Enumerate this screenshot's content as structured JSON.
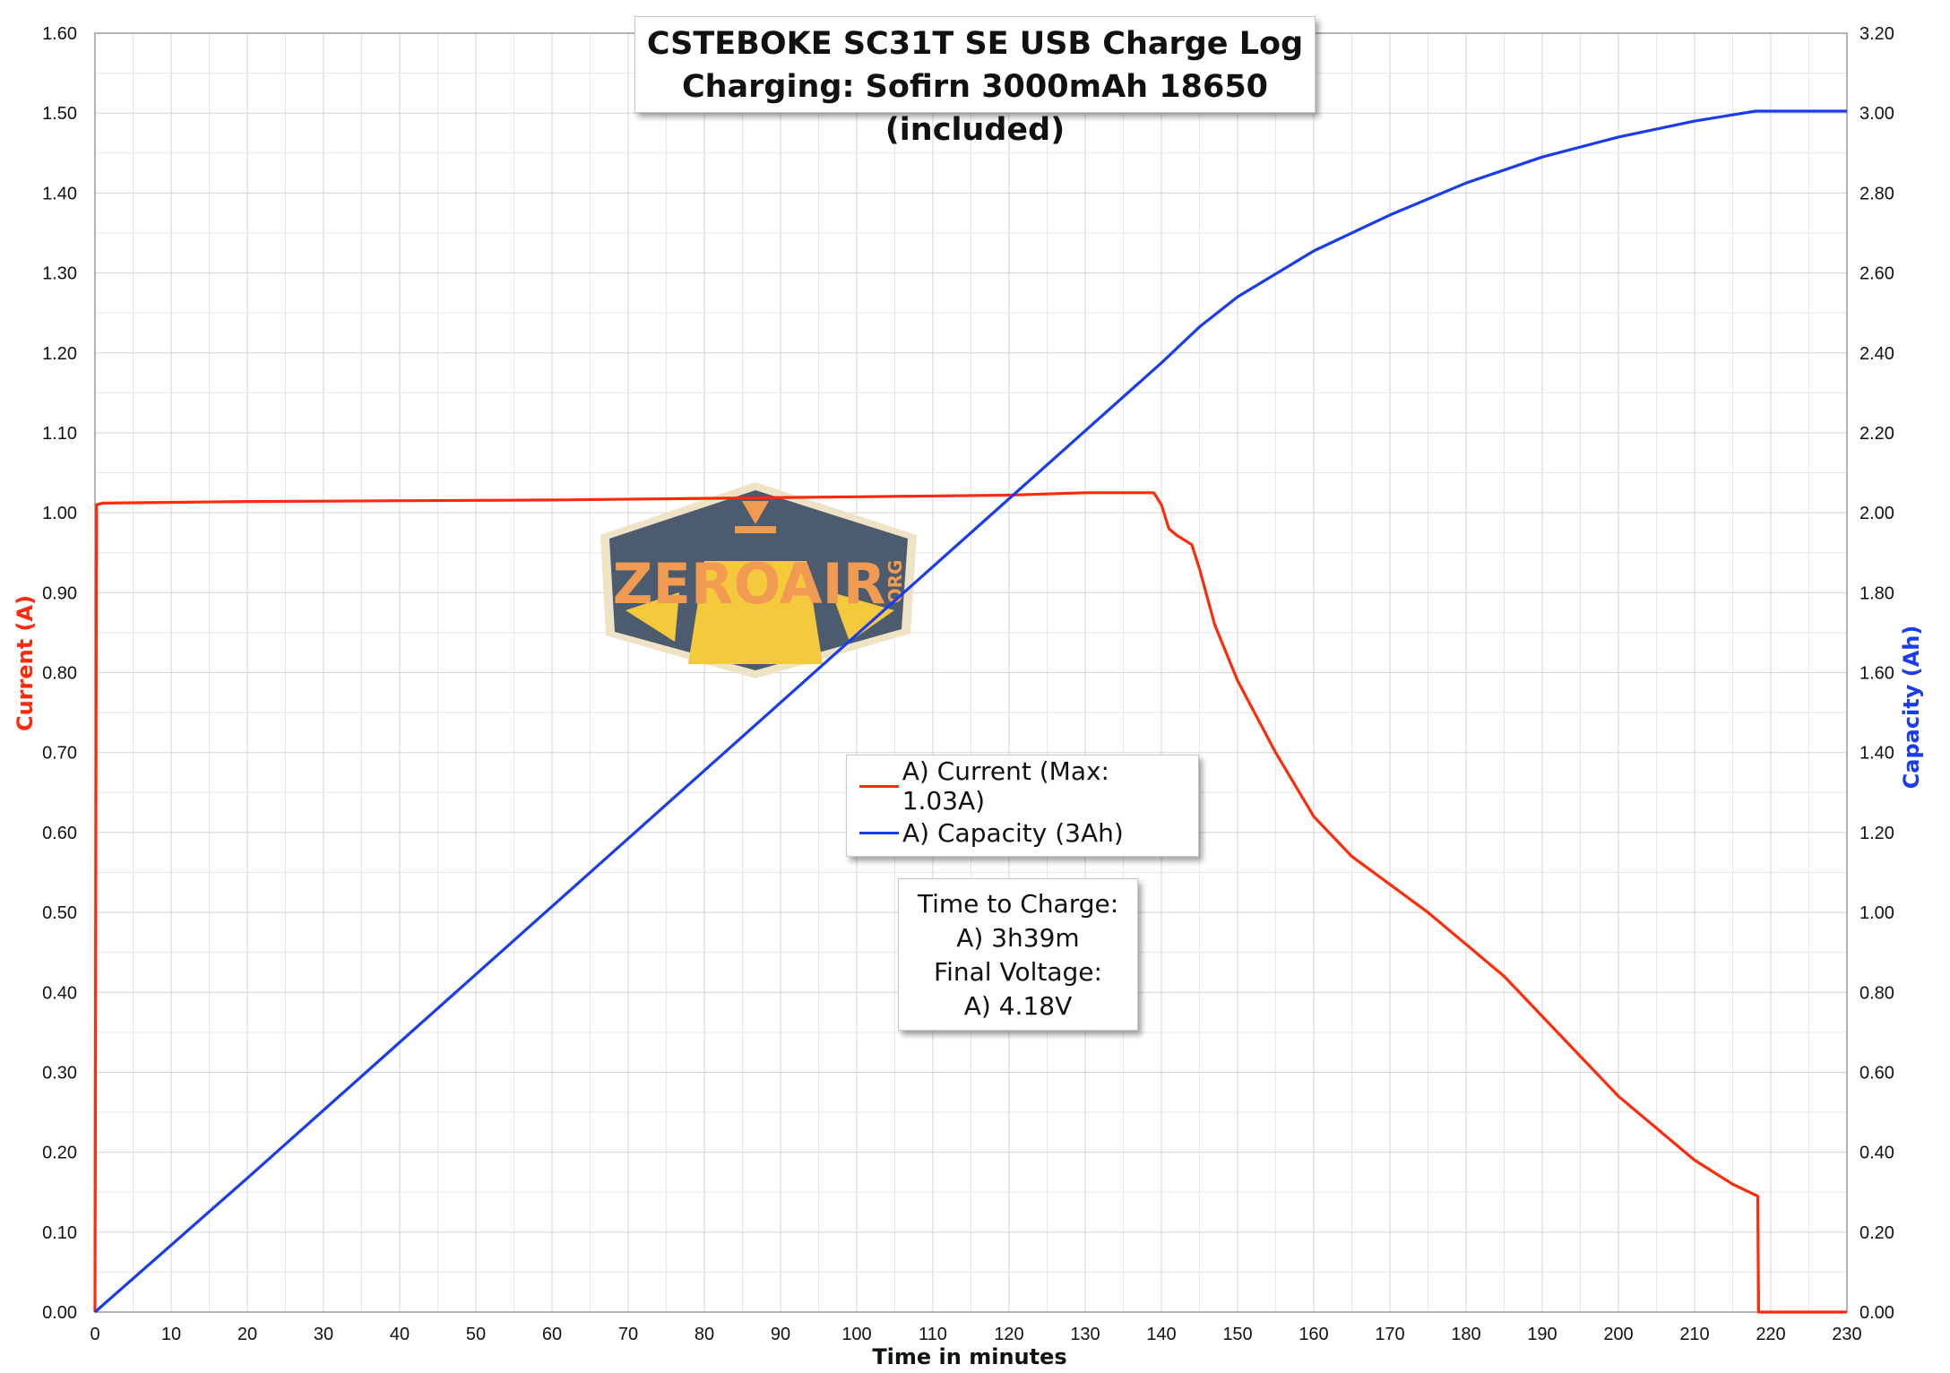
{
  "title_line1": "CSTEBOKE SC31T SE USB Charge Log",
  "title_line2": "Charging: Sofirn 3000mAh 18650 (included)",
  "legend": {
    "current": "A) Current (Max: 1.03A)",
    "capacity": "A) Capacity (3Ah)"
  },
  "note": {
    "line1": "Time to Charge:",
    "line2": "A) 3h39m",
    "line3": "Final Voltage:",
    "line4": "A) 4.18V"
  },
  "watermark": {
    "text": "ZEROAIR",
    "sub": "ORG"
  },
  "colors": {
    "current": "#ff2a0a",
    "capacity": "#1a3cf0",
    "grid": "#d4d4d4",
    "watermark_bg": "#4d5b6e",
    "watermark_accent": "#f09a52",
    "watermark_road": "#f5c93c"
  },
  "chart_data": {
    "type": "line",
    "xlabel": "Time in minutes",
    "ylabel_left": "Current (A)",
    "ylabel_right": "Capacity (Ah)",
    "xlim": [
      0,
      230
    ],
    "ylim_left": [
      0,
      1.6
    ],
    "ylim_right": [
      0,
      3.2
    ],
    "x_ticks": [
      "0",
      "10",
      "20",
      "30",
      "40",
      "50",
      "60",
      "70",
      "80",
      "90",
      "100",
      "110",
      "120",
      "130",
      "140",
      "150",
      "160",
      "170",
      "180",
      "190",
      "200",
      "210",
      "220",
      "230"
    ],
    "y_left_ticks": [
      "0.00",
      "0.10",
      "0.20",
      "0.30",
      "0.40",
      "0.50",
      "0.60",
      "0.70",
      "0.80",
      "0.90",
      "1.00",
      "1.10",
      "1.20",
      "1.30",
      "1.40",
      "1.50",
      "1.60"
    ],
    "y_right_ticks": [
      "0.00",
      "0.20",
      "0.40",
      "0.60",
      "0.80",
      "1.00",
      "1.20",
      "1.40",
      "1.60",
      "1.80",
      "2.00",
      "2.20",
      "2.40",
      "2.60",
      "2.80",
      "3.00",
      "3.20"
    ],
    "grid": true,
    "series": [
      {
        "name": "A) Current (Max: 1.03A)",
        "axis": "left",
        "x": [
          0,
          0.2,
          1,
          20,
          60,
          100,
          120,
          130,
          139,
          140,
          141,
          142,
          144,
          145,
          147,
          150,
          155,
          160,
          165,
          170,
          175,
          180,
          185,
          190,
          195,
          200,
          205,
          210,
          215,
          218.3,
          218.4,
          230
        ],
        "y": [
          0,
          1.01,
          1.012,
          1.014,
          1.016,
          1.02,
          1.022,
          1.025,
          1.025,
          1.01,
          0.98,
          0.972,
          0.96,
          0.93,
          0.86,
          0.79,
          0.7,
          0.62,
          0.57,
          0.535,
          0.5,
          0.46,
          0.42,
          0.37,
          0.32,
          0.27,
          0.23,
          0.19,
          0.16,
          0.145,
          0.0,
          0.0
        ]
      },
      {
        "name": "A) Capacity (3Ah)",
        "axis": "right",
        "x": [
          0,
          20,
          40,
          60,
          80,
          100,
          120,
          130,
          140,
          145,
          150,
          160,
          170,
          180,
          190,
          200,
          210,
          218,
          230
        ],
        "y": [
          0,
          0.335,
          0.675,
          1.015,
          1.355,
          1.695,
          2.035,
          2.205,
          2.375,
          2.465,
          2.54,
          2.655,
          2.745,
          2.825,
          2.89,
          2.94,
          2.98,
          3.005,
          3.005
        ]
      }
    ]
  }
}
